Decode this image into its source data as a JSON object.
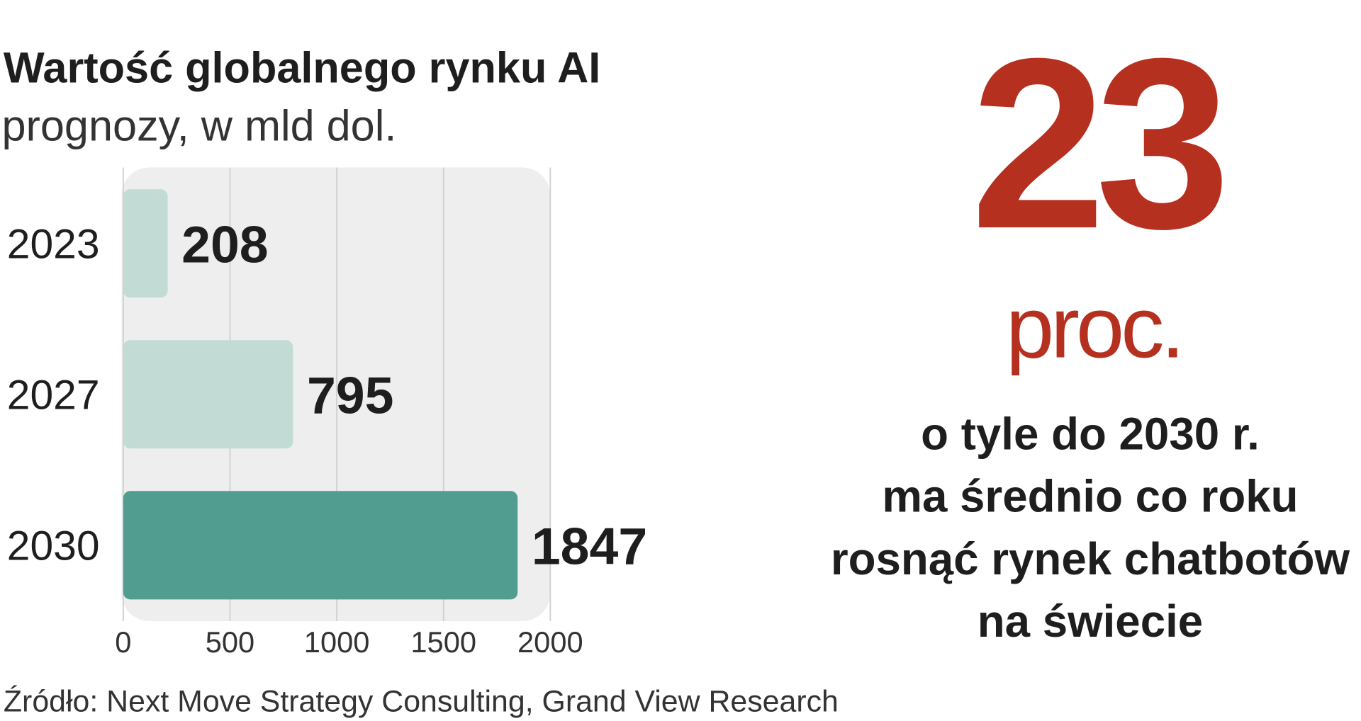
{
  "chart_data": {
    "type": "bar",
    "orientation": "horizontal",
    "title": "Wartość globalnego rynku AI",
    "subtitle": "prognozy, w mld dol.",
    "categories": [
      "2023",
      "2027",
      "2030"
    ],
    "values": [
      208,
      795,
      1847
    ],
    "colors": [
      "#c2dcd5",
      "#c2dcd5",
      "#519d90"
    ],
    "xlim": [
      0,
      2000
    ],
    "xticks": [
      0,
      500,
      1000,
      1500,
      2000
    ],
    "grid": true,
    "source": "Źródło: Next Move Strategy Consulting, Grand View Research"
  },
  "callout": {
    "number": "23",
    "unit": "proc.",
    "lines": [
      "o tyle do 2030 r.",
      "ma średnio co roku",
      "rosnąć rynek chatbotów",
      "na świecie"
    ],
    "color": "#b5301f"
  }
}
